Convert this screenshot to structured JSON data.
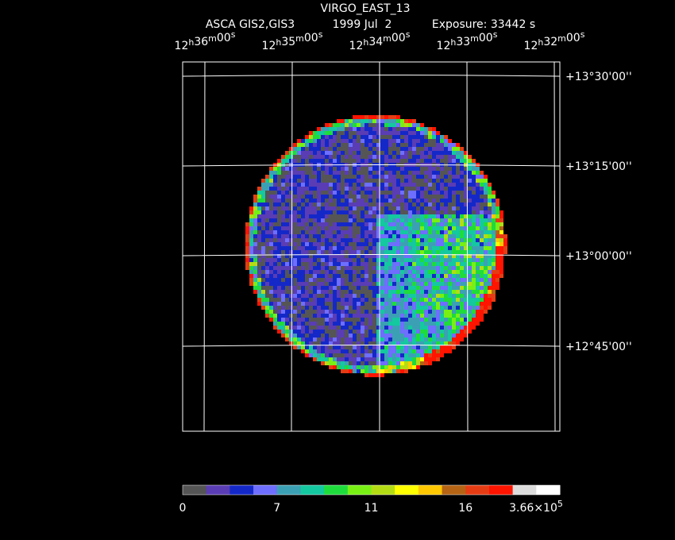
{
  "header": {
    "title": "VIRGO_EAST_13",
    "instrument": "ASCA GIS2,GIS3",
    "date": "1999 Jul  2",
    "exposure": "Exposure: 33442 s"
  },
  "ra_units": [
    "h",
    "m",
    "s"
  ],
  "ra_labels": [
    {
      "hours": "12",
      "minutes": "36",
      "seconds": "00"
    },
    {
      "hours": "12",
      "minutes": "35",
      "seconds": "00"
    },
    {
      "hours": "12",
      "minutes": "34",
      "seconds": "00"
    },
    {
      "hours": "12",
      "minutes": "33",
      "seconds": "00"
    },
    {
      "hours": "12",
      "minutes": "32",
      "seconds": "00"
    }
  ],
  "dec_labels": [
    "+13°30'00''",
    "+13°15'00''",
    "+13°00'00''",
    "+12°45'00''"
  ],
  "colorbar": {
    "colors": [
      "#555555",
      "#5a3cb4",
      "#1428c8",
      "#6e6eff",
      "#3ca0b4",
      "#14c8a0",
      "#1edc3c",
      "#78f014",
      "#b4dc14",
      "#ffff00",
      "#ffc800",
      "#b46414",
      "#e63c14",
      "#ff1400",
      "#dcdcdc",
      "#ffffff"
    ],
    "labels": [
      "0",
      "7",
      "11",
      "16"
    ],
    "max_label": {
      "mantissa": "3.66×10",
      "exponent": "5"
    }
  }
}
